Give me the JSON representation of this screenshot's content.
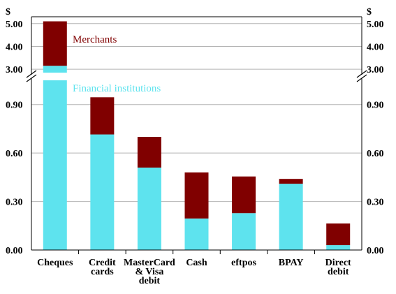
{
  "chart_data": {
    "type": "bar",
    "stacked": true,
    "categories": [
      [
        "Cheques"
      ],
      [
        "Credit",
        "cards"
      ],
      [
        "MasterCard",
        "& Visa",
        "debit"
      ],
      [
        "Cash"
      ],
      [
        "eftpos"
      ],
      [
        "BPAY"
      ],
      [
        "Direct",
        "debit"
      ]
    ],
    "series": [
      {
        "name": "Financial institutions",
        "color": "#5ee3ee",
        "values": [
          3.15,
          0.715,
          0.51,
          0.195,
          0.228,
          0.41,
          0.03
        ]
      },
      {
        "name": "Merchants",
        "color": "#800000",
        "values": [
          1.95,
          0.23,
          0.19,
          0.285,
          0.227,
          0.03,
          0.134
        ]
      }
    ],
    "y_unit": "$",
    "lower_axis": {
      "range": [
        0,
        1.05
      ],
      "ticks": [
        "0.00",
        "0.30",
        "0.60",
        "0.90"
      ]
    },
    "upper_axis": {
      "range": [
        2.85,
        5.3
      ],
      "ticks": [
        "3.00",
        "4.00",
        "5.00"
      ]
    },
    "axis_break": true,
    "grid": true,
    "legend_placement": "inline labels next to Cheques bar"
  }
}
